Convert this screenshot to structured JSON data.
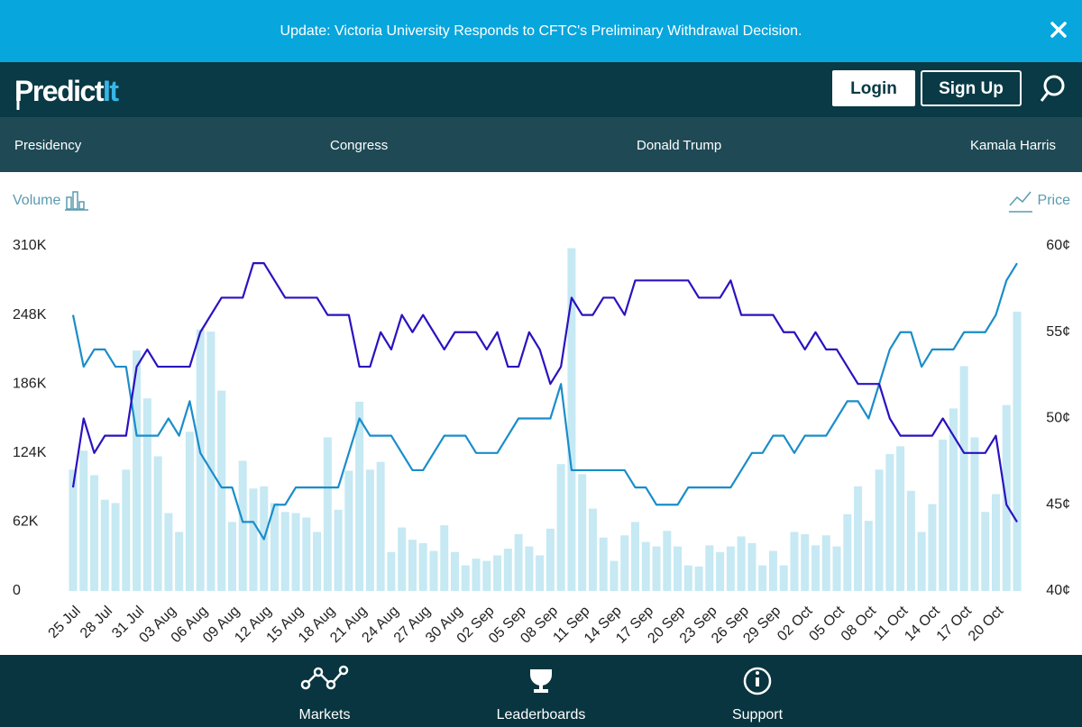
{
  "banner": {
    "text": "Update: Victoria University Responds to CFTC's Preliminary Withdrawal Decision."
  },
  "header": {
    "logo": [
      "Predict",
      "It"
    ],
    "login": "Login",
    "signup": "Sign Up"
  },
  "nav": [
    "Presidency",
    "Congress",
    "Donald Trump",
    "Kamala Harris"
  ],
  "footer": [
    "Markets",
    "Leaderboards",
    "Support"
  ],
  "chart_data": {
    "type": "combo",
    "ylabel": "Volume",
    "y2label": "Price",
    "categories": [
      "25 Jul",
      null,
      null,
      "28 Jul",
      null,
      null,
      "31 Jul",
      null,
      null,
      "03 Aug",
      null,
      null,
      "06 Aug",
      null,
      null,
      "09 Aug",
      null,
      null,
      "12 Aug",
      null,
      null,
      "15 Aug",
      null,
      null,
      "18 Aug",
      null,
      null,
      "21 Aug",
      null,
      null,
      "24 Aug",
      null,
      null,
      "27 Aug",
      null,
      null,
      "30 Aug",
      null,
      null,
      "02 Sep",
      null,
      null,
      "05 Sep",
      null,
      null,
      "08 Sep",
      null,
      null,
      "11 Sep",
      null,
      null,
      "14 Sep",
      null,
      null,
      "17 Sep",
      null,
      null,
      "20 Sep",
      null,
      null,
      "23 Sep",
      null,
      null,
      "26 Sep",
      null,
      null,
      "29 Sep",
      null,
      null,
      "02 Oct",
      null,
      null,
      "05 Oct",
      null,
      null,
      "08 Oct",
      null,
      null,
      "11 Oct",
      null,
      null,
      "14 Oct",
      null,
      null,
      "17 Oct",
      null,
      null,
      "20 Oct",
      null,
      null
    ],
    "ylim": [
      0,
      310000
    ],
    "yticks": [
      0,
      {
        "value": 62000,
        "label": "62K"
      },
      {
        "value": 124000,
        "label": "124K"
      },
      {
        "value": 186000,
        "label": "186K"
      },
      {
        "value": 248000,
        "label": "248K"
      },
      {
        "value": 310000,
        "label": "310K"
      }
    ],
    "y2lim": [
      40,
      60
    ],
    "y2ticks": [
      {
        "value": 40,
        "label": "40¢"
      },
      {
        "value": 45,
        "label": "45¢"
      },
      {
        "value": 50,
        "label": "50¢"
      },
      {
        "value": 55,
        "label": "55¢"
      },
      {
        "value": 60,
        "label": "60¢"
      }
    ],
    "series": [
      {
        "type": "bar",
        "color": "#c6e9f3",
        "values": [
          109000,
          126000,
          104000,
          82000,
          79000,
          109000,
          216000,
          173000,
          121000,
          70000,
          53000,
          143000,
          235000,
          233000,
          180000,
          62000,
          117000,
          92000,
          94000,
          79000,
          71000,
          70000,
          66000,
          53000,
          138000,
          73000,
          108000,
          170000,
          109000,
          116000,
          35000,
          57000,
          46000,
          43000,
          36000,
          59000,
          35000,
          23000,
          29000,
          27000,
          32000,
          38000,
          51000,
          40000,
          32000,
          56000,
          114000,
          308000,
          105000,
          74000,
          48000,
          27000,
          50000,
          62000,
          44000,
          40000,
          54000,
          40000,
          23000,
          22000,
          41000,
          35000,
          40000,
          49000,
          43000,
          23000,
          36000,
          23000,
          53000,
          51000,
          41000,
          50000,
          40000,
          69000,
          94000,
          63000,
          109000,
          123000,
          130000,
          90000,
          53000,
          78000,
          136000,
          164000,
          202000,
          138000,
          71000,
          87000,
          167000,
          251000
        ]
      },
      {
        "type": "line",
        "axis": "y2",
        "color": "#1a8dca",
        "values": [
          56,
          53,
          54,
          54,
          53,
          53,
          49,
          49,
          49,
          50,
          49,
          51,
          48,
          47,
          46,
          46,
          44,
          44,
          43,
          45,
          45,
          46,
          46,
          46,
          46,
          46,
          48,
          50,
          49,
          49,
          49,
          48,
          47,
          47,
          48,
          49,
          49,
          49,
          48,
          48,
          48,
          49,
          50,
          50,
          50,
          50,
          52,
          47,
          47,
          47,
          47,
          47,
          47,
          46,
          46,
          45,
          45,
          45,
          46,
          46,
          46,
          46,
          46,
          47,
          48,
          48,
          49,
          49,
          48,
          49,
          49,
          49,
          50,
          51,
          51,
          50,
          52,
          54,
          55,
          55,
          53,
          54,
          54,
          54,
          55,
          55,
          55,
          56,
          58,
          59
        ]
      },
      {
        "type": "line",
        "axis": "y2",
        "color": "#2a12c0",
        "values": [
          46,
          50,
          48,
          49,
          49,
          49,
          53,
          54,
          53,
          53,
          53,
          53,
          55,
          56,
          57,
          57,
          57,
          59,
          59,
          58,
          57,
          57,
          57,
          57,
          56,
          56,
          56,
          53,
          53,
          55,
          54,
          56,
          55,
          56,
          55,
          54,
          55,
          55,
          55,
          54,
          55,
          53,
          53,
          55,
          54,
          52,
          53,
          57,
          56,
          56,
          57,
          57,
          56,
          58,
          58,
          58,
          58,
          58,
          58,
          57,
          57,
          57,
          58,
          56,
          56,
          56,
          56,
          55,
          55,
          54,
          55,
          54,
          54,
          53,
          52,
          52,
          52,
          50,
          49,
          49,
          49,
          49,
          50,
          49,
          48,
          48,
          48,
          49,
          45,
          44
        ]
      }
    ]
  }
}
